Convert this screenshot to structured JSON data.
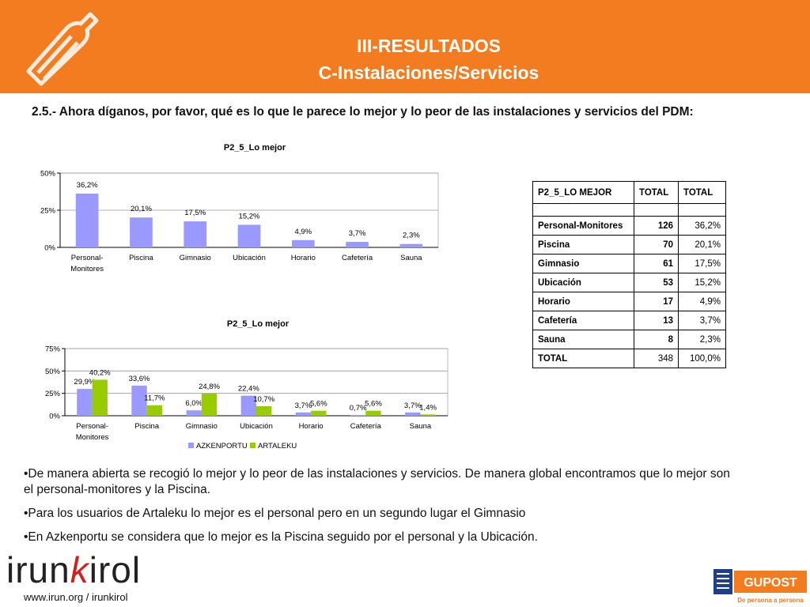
{
  "header": {
    "title_line1": "III-RESULTADOS",
    "title_line2": "C-Instalaciones/Servicios",
    "bg_color": "#f47c20"
  },
  "question": "2.5.- Ahora díganos, por favor, qué es lo que le parece lo mejor y lo peor de las instalaciones y servicios del PDM:",
  "chart_data": [
    {
      "type": "bar",
      "title": "P2_5_Lo mejor",
      "categories": [
        "Personal-Monitores",
        "Piscina",
        "Gimnasio",
        "Ubicación",
        "Horario",
        "Cafetería",
        "Sauna"
      ],
      "category_labels": [
        [
          "Personal-",
          "Monitores"
        ],
        [
          "Piscina"
        ],
        [
          "Gimnasio"
        ],
        [
          "Ubicación"
        ],
        [
          "Horario"
        ],
        [
          "Cafetería"
        ],
        [
          "Sauna"
        ]
      ],
      "values": [
        36.2,
        20.1,
        17.5,
        15.2,
        4.9,
        3.7,
        2.3
      ],
      "value_labels": [
        "36,2%",
        "20,1%",
        "17,5%",
        "15,2%",
        "4,9%",
        "3,7%",
        "2,3%"
      ],
      "ylim": [
        0,
        50
      ],
      "yticks": [
        0,
        25,
        50
      ],
      "ytick_labels": [
        "0%",
        "25%",
        "50%"
      ],
      "color": "#9999ff"
    },
    {
      "type": "bar",
      "title": "P2_5_Lo mejor",
      "categories": [
        "Personal-Monitores",
        "Piscina",
        "Gimnasio",
        "Ubicación",
        "Horario",
        "Cafetería",
        "Sauna"
      ],
      "category_labels": [
        [
          "Personal-",
          "Monitores"
        ],
        [
          "Piscina"
        ],
        [
          "Gimnasio"
        ],
        [
          "Ubicación"
        ],
        [
          "Horario"
        ],
        [
          "Cafetería"
        ],
        [
          "Sauna"
        ]
      ],
      "series": [
        {
          "name": "AZKENPORTU",
          "values": [
            29.9,
            33.6,
            6.0,
            22.4,
            3.7,
            0.7,
            3.7
          ],
          "labels": [
            "29,9%",
            "33,6%",
            "6,0%",
            "22,4%",
            "3,7%",
            "0,7%",
            "3,7%"
          ],
          "color": "#9999ff"
        },
        {
          "name": "ARTALEKU",
          "values": [
            40.2,
            11.7,
            24.8,
            10.7,
            5.6,
            5.6,
            1.4
          ],
          "labels": [
            "40,2%",
            "11,7%",
            "24,8%",
            "10,7%",
            "5,6%",
            "5,6%",
            "1,4%"
          ],
          "color": "#99cc00"
        }
      ],
      "ylim": [
        0,
        75
      ],
      "yticks": [
        0,
        25,
        50,
        75
      ],
      "ytick_labels": [
        "0%",
        "25%",
        "50%",
        "75%"
      ],
      "legend": "bottom-left"
    }
  ],
  "table": {
    "headers": [
      "P2_5_LO MEJOR",
      "TOTAL",
      "TOTAL"
    ],
    "rows": [
      [
        "Personal-Monitores",
        "126",
        "36,2%"
      ],
      [
        "Piscina",
        "70",
        "20,1%"
      ],
      [
        "Gimnasio",
        "61",
        "17,5%"
      ],
      [
        "Ubicación",
        "53",
        "15,2%"
      ],
      [
        "Horario",
        "17",
        "4,9%"
      ],
      [
        "Cafetería",
        "13",
        "3,7%"
      ],
      [
        "Sauna",
        "8",
        "2,3%"
      ],
      [
        "TOTAL",
        "348",
        "100,0%"
      ]
    ]
  },
  "bullets": [
    "•De manera abierta se recogió lo mejor y lo peor de las instalaciones y servicios. De manera global encontramos que lo mejor son el personal-monitores y la Piscina.",
    "•Para los usuarios de Artaleku lo mejor es el personal pero en un segundo lugar el Gimnasio",
    "•En Azkenportu se considera que lo mejor es la Piscina seguido por el personal y la Ubicación."
  ],
  "footer": {
    "logo_text_a": "irun",
    "logo_text_k": "k",
    "logo_text_b": "irol",
    "website": "www.irun.org / irunkirol",
    "gupost_name": "GUPOST",
    "gupost_slogan": "De persona a persona"
  }
}
